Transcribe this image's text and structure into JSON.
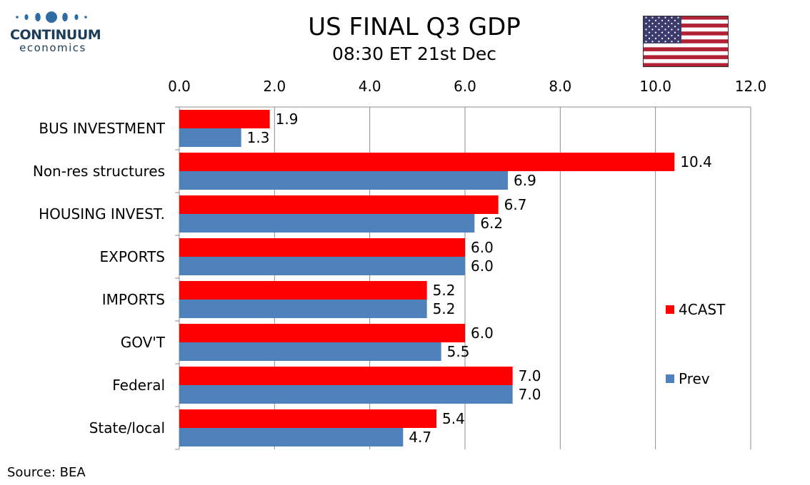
{
  "logo": {
    "wordmark": "CONTINUUM",
    "subtext": "economics"
  },
  "header": {
    "title": "US FINAL Q3 GDP",
    "subtitle": "08:30 ET 21st Dec"
  },
  "flag_icon": "us-flag-icon",
  "footer": {
    "source": "Source: BEA"
  },
  "colors": {
    "forecast": "#ff0000",
    "previous": "#4f81bd",
    "logo": "#2e6da4"
  },
  "chart_data": {
    "type": "bar",
    "orientation": "horizontal",
    "title": "US FINAL Q3 GDP",
    "subtitle": "08:30 ET 21st Dec",
    "categories": [
      "BUS INVESTMENT",
      "Non-res structures",
      "HOUSING INVEST.",
      "EXPORTS",
      "IMPORTS",
      "GOV'T",
      "Federal",
      "State/local"
    ],
    "series": [
      {
        "name": "4CAST",
        "color": "#ff0000",
        "values": [
          1.9,
          10.4,
          6.7,
          6.0,
          5.2,
          6.0,
          7.0,
          5.4
        ]
      },
      {
        "name": "Prev",
        "color": "#4f81bd",
        "values": [
          1.3,
          6.9,
          6.2,
          6.0,
          5.2,
          5.5,
          7.0,
          4.7
        ]
      }
    ],
    "value_labels": [
      [
        "1.9",
        "10.4",
        "6.7",
        "6.0",
        "5.2",
        "6.0",
        "7.0",
        "5.4"
      ],
      [
        "1.3",
        "6.9",
        "6.2",
        "6.0",
        "5.2",
        "5.5",
        "7.0",
        "4.7"
      ]
    ],
    "xlim": [
      0,
      12
    ],
    "xticks": [
      0,
      2,
      4,
      6,
      8,
      10,
      12
    ],
    "xtick_labels": [
      "0.0",
      "2.0",
      "4.0",
      "6.0",
      "8.0",
      "10.0",
      "12.0"
    ],
    "x_axis_position": "top",
    "grid": true,
    "legend_position": "right"
  }
}
